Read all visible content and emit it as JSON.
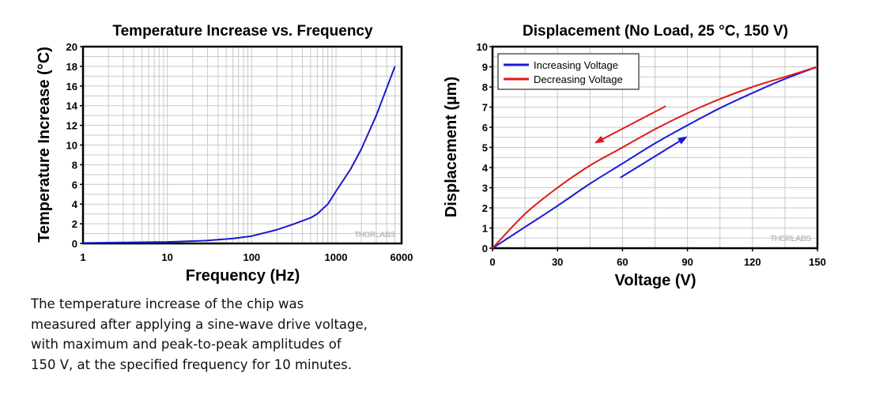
{
  "chart_data": [
    {
      "type": "line",
      "title": "Temperature Increase vs. Frequency",
      "xlabel": "Frequency (Hz)",
      "ylabel": "Temperature Increase (°C)",
      "xscale": "log",
      "xlim": [
        1,
        6000
      ],
      "ylim": [
        0,
        20
      ],
      "xticks": [
        1,
        10,
        100,
        1000,
        6000
      ],
      "xtick_labels": [
        "1",
        "10",
        "100",
        "1000",
        "6000"
      ],
      "yticks": [
        0,
        2,
        4,
        6,
        8,
        10,
        12,
        14,
        16,
        18,
        20
      ],
      "grid": true,
      "watermark": "THORLABS",
      "series": [
        {
          "color": "#1a1acc",
          "x": [
            1,
            3,
            10,
            30,
            60,
            100,
            200,
            300,
            500,
            600,
            800,
            1000,
            1500,
            2000,
            3000,
            4000,
            5000
          ],
          "y": [
            0.05,
            0.1,
            0.15,
            0.3,
            0.5,
            0.75,
            1.4,
            1.9,
            2.6,
            3.0,
            4.0,
            5.3,
            7.6,
            9.6,
            13.0,
            15.8,
            18.0
          ]
        }
      ]
    },
    {
      "type": "line",
      "title": "Displacement (No Load, 25 °C, 150 V)",
      "xlabel": "Voltage (V)",
      "ylabel": "Displacement (µm)",
      "xlim": [
        0,
        150
      ],
      "ylim": [
        0,
        10
      ],
      "xticks": [
        0,
        30,
        60,
        90,
        120,
        150
      ],
      "yticks": [
        0,
        1,
        2,
        3,
        4,
        5,
        6,
        7,
        8,
        9,
        10
      ],
      "grid": true,
      "legend": "top-left",
      "watermark": "THORLABS",
      "series": [
        {
          "name": "Increasing Voltage",
          "color": "#1a1add",
          "x": [
            0,
            15,
            30,
            45,
            60,
            75,
            90,
            105,
            120,
            135,
            150
          ],
          "y": [
            0,
            1.05,
            2.1,
            3.2,
            4.2,
            5.2,
            6.1,
            6.95,
            7.7,
            8.4,
            9.0
          ]
        },
        {
          "name": "Decreasing Voltage",
          "color": "#e01a1a",
          "x": [
            0,
            15,
            30,
            45,
            60,
            75,
            90,
            105,
            120,
            135,
            150
          ],
          "y": [
            0,
            1.7,
            3.0,
            4.1,
            5.0,
            5.9,
            6.7,
            7.4,
            8.0,
            8.5,
            9.0
          ]
        }
      ],
      "annotations": [
        {
          "type": "arrow",
          "color": "#e01a1a",
          "from": [
            80,
            7.05
          ],
          "to": [
            47,
            5.2
          ]
        },
        {
          "type": "arrow",
          "color": "#1a1add",
          "from": [
            59,
            3.5
          ],
          "to": [
            90,
            5.55
          ]
        }
      ]
    }
  ],
  "caption": {
    "lines": [
      "The temperature increase of the chip was",
      "measured after applying a sine-wave drive voltage,",
      "with maximum and peak-to-peak amplitudes of",
      "150 V, at the specified frequency for 10 minutes."
    ]
  }
}
